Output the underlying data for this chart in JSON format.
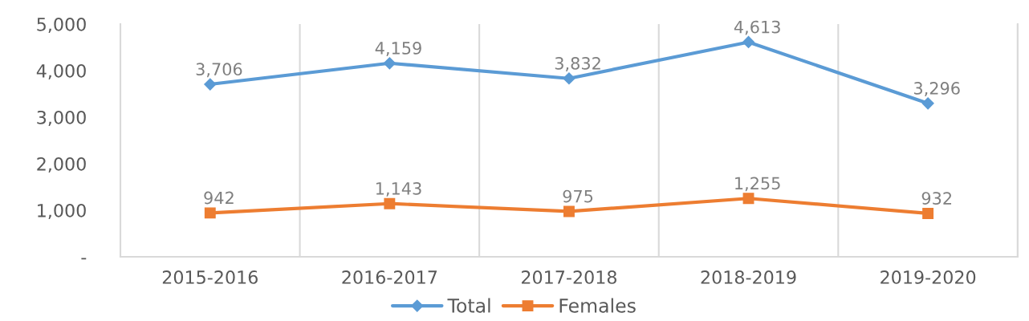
{
  "chart_data": {
    "type": "line",
    "categories": [
      "2015-2016",
      "2016-2017",
      "2017-2018",
      "2018-2019",
      "2019-2020"
    ],
    "series": [
      {
        "name": "Total",
        "color": "#5b9bd5",
        "marker": "diamond",
        "values": [
          3706,
          4159,
          3832,
          4613,
          3296
        ],
        "value_labels": [
          "3,706",
          "4,159",
          "3,832",
          "4,613",
          "3,296"
        ]
      },
      {
        "name": "Females",
        "color": "#ed7d31",
        "marker": "square",
        "values": [
          942,
          1143,
          975,
          1255,
          932
        ],
        "value_labels": [
          "942",
          "1,143",
          "975",
          "1,255",
          "932"
        ]
      }
    ],
    "ylim": [
      0,
      5000
    ],
    "yticks": [
      {
        "value": 0,
        "label": "-"
      },
      {
        "value": 1000,
        "label": "1,000"
      },
      {
        "value": 2000,
        "label": "2,000"
      },
      {
        "value": 3000,
        "label": "3,000"
      },
      {
        "value": 4000,
        "label": "4,000"
      },
      {
        "value": 5000,
        "label": "5,000"
      }
    ],
    "grid": "x",
    "legend": "bottom",
    "line_style": "solid"
  }
}
